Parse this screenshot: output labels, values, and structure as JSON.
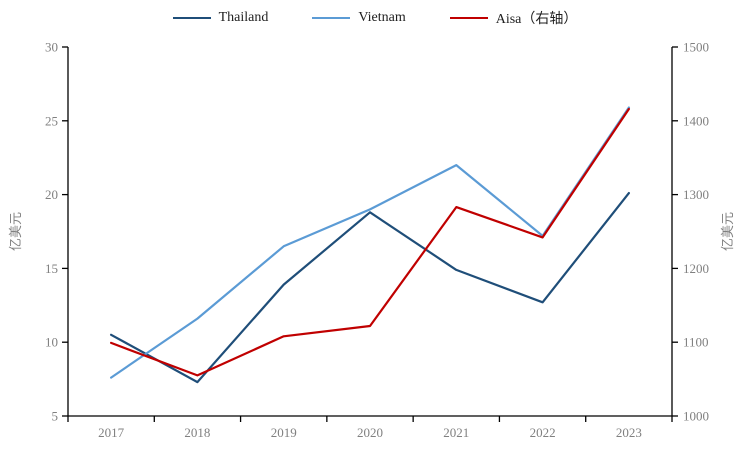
{
  "chart_data": {
    "type": "line",
    "title": "",
    "categories": [
      "2017",
      "2018",
      "2019",
      "2020",
      "2021",
      "2022",
      "2023"
    ],
    "series": [
      {
        "name": "Thailand",
        "axis": "left",
        "color": "#1F4E79",
        "values": [
          10.5,
          7.3,
          13.9,
          18.8,
          14.9,
          12.7,
          20.1
        ]
      },
      {
        "name": "Vietnam",
        "axis": "left",
        "color": "#5B9BD5",
        "values": [
          7.6,
          11.6,
          16.5,
          19.0,
          22.0,
          17.2,
          25.9
        ]
      },
      {
        "name": "Aisa（右轴）",
        "axis": "right",
        "color": "#C00000",
        "values": [
          1099,
          1055,
          1108,
          1122,
          1283,
          1242,
          1416
        ]
      }
    ],
    "left_axis": {
      "title": "亿美元",
      "min": 5,
      "max": 30,
      "step": 5,
      "ticks": [
        5,
        10,
        15,
        20,
        25,
        30
      ]
    },
    "right_axis": {
      "title": "亿美元",
      "min": 1000,
      "max": 1500,
      "step": 100,
      "ticks": [
        1000,
        1100,
        1200,
        1300,
        1400,
        1500
      ]
    },
    "x_axis": {
      "tick_mode": "between-categories"
    },
    "legend_position": "top",
    "grid": false,
    "colors": {
      "background": "#ffffff",
      "axis_line": "#000000",
      "tick_label": "#808080",
      "axis_title": "#808080",
      "legend_text": "#1f1f1f"
    }
  }
}
